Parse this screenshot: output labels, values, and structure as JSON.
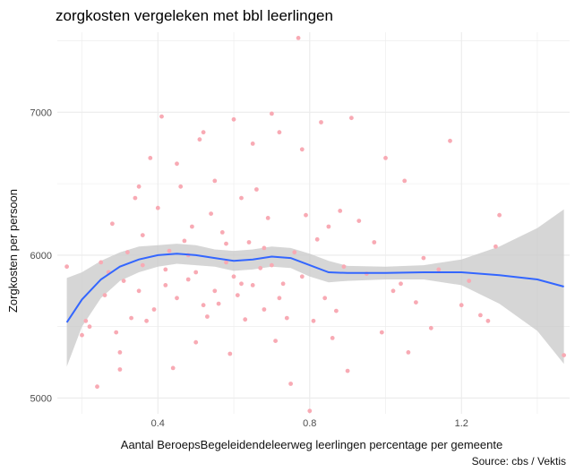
{
  "chart_data": {
    "type": "scatter",
    "title": "zorgkosten vergeleken met bbl leerlingen",
    "xlabel": "Aantal BeroepsBegeleidendeleerweg leerlingen percentage per gemeente",
    "ylabel": "Zorgkosten per persoon",
    "caption": "Source: cbs / Vektis",
    "xlim": [
      0.135,
      1.485
    ],
    "ylim": [
      4890,
      7560
    ],
    "xticks": [
      0.4,
      0.8,
      1.2
    ],
    "yticks": [
      5000,
      6000,
      7000
    ],
    "grid": true,
    "colors": {
      "points": "#f8aab4",
      "smooth": "#3366ff",
      "band": "#c8c8c8",
      "grid": "#ebebeb"
    },
    "smooth": {
      "method": "loess",
      "x": [
        0.16,
        0.2,
        0.25,
        0.3,
        0.35,
        0.4,
        0.45,
        0.5,
        0.55,
        0.6,
        0.65,
        0.7,
        0.75,
        0.8,
        0.85,
        0.9,
        1.0,
        1.1,
        1.2,
        1.3,
        1.4,
        1.47
      ],
      "y": [
        5530,
        5690,
        5830,
        5920,
        5970,
        6000,
        6010,
        6000,
        5980,
        5960,
        5970,
        5990,
        5980,
        5930,
        5880,
        5875,
        5875,
        5880,
        5880,
        5860,
        5830,
        5780
      ],
      "upper": [
        5840,
        5880,
        5960,
        6020,
        6060,
        6070,
        6080,
        6070,
        6040,
        6030,
        6040,
        6060,
        6050,
        6010,
        5960,
        5925,
        5920,
        5930,
        5970,
        6060,
        6190,
        6320
      ],
      "lower": [
        5220,
        5500,
        5700,
        5820,
        5880,
        5920,
        5940,
        5930,
        5920,
        5890,
        5900,
        5920,
        5910,
        5850,
        5810,
        5820,
        5830,
        5830,
        5790,
        5660,
        5470,
        5240
      ]
    },
    "points": [
      [
        0.16,
        5920
      ],
      [
        0.2,
        5440
      ],
      [
        0.21,
        5540
      ],
      [
        0.22,
        5500
      ],
      [
        0.24,
        5080
      ],
      [
        0.25,
        5950
      ],
      [
        0.26,
        5720
      ],
      [
        0.27,
        5880
      ],
      [
        0.28,
        6220
      ],
      [
        0.29,
        5460
      ],
      [
        0.3,
        5200
      ],
      [
        0.3,
        5320
      ],
      [
        0.31,
        5820
      ],
      [
        0.32,
        6020
      ],
      [
        0.33,
        5560
      ],
      [
        0.34,
        6400
      ],
      [
        0.35,
        6480
      ],
      [
        0.36,
        5930
      ],
      [
        0.36,
        6140
      ],
      [
        0.37,
        5540
      ],
      [
        0.38,
        6680
      ],
      [
        0.39,
        5620
      ],
      [
        0.4,
        6330
      ],
      [
        0.41,
        6970
      ],
      [
        0.42,
        5790
      ],
      [
        0.43,
        6030
      ],
      [
        0.44,
        5210
      ],
      [
        0.45,
        6640
      ],
      [
        0.46,
        6480
      ],
      [
        0.47,
        6100
      ],
      [
        0.48,
        5830
      ],
      [
        0.49,
        6200
      ],
      [
        0.5,
        5390
      ],
      [
        0.51,
        6810
      ],
      [
        0.52,
        6860
      ],
      [
        0.53,
        5570
      ],
      [
        0.54,
        6290
      ],
      [
        0.55,
        6520
      ],
      [
        0.56,
        5660
      ],
      [
        0.57,
        6160
      ],
      [
        0.58,
        6080
      ],
      [
        0.59,
        5310
      ],
      [
        0.6,
        6950
      ],
      [
        0.61,
        5720
      ],
      [
        0.62,
        6400
      ],
      [
        0.63,
        5550
      ],
      [
        0.64,
        6090
      ],
      [
        0.65,
        6780
      ],
      [
        0.66,
        6460
      ],
      [
        0.67,
        5910
      ],
      [
        0.68,
        5620
      ],
      [
        0.69,
        6260
      ],
      [
        0.7,
        6990
      ],
      [
        0.71,
        5400
      ],
      [
        0.72,
        6860
      ],
      [
        0.73,
        5800
      ],
      [
        0.74,
        5560
      ],
      [
        0.75,
        5100
      ],
      [
        0.76,
        6020
      ],
      [
        0.77,
        7520
      ],
      [
        0.78,
        6740
      ],
      [
        0.79,
        6280
      ],
      [
        0.8,
        4910
      ],
      [
        0.81,
        5540
      ],
      [
        0.82,
        6110
      ],
      [
        0.83,
        6930
      ],
      [
        0.84,
        5700
      ],
      [
        0.85,
        6200
      ],
      [
        0.86,
        5420
      ],
      [
        0.87,
        5610
      ],
      [
        0.88,
        6310
      ],
      [
        0.89,
        5920
      ],
      [
        0.9,
        5190
      ],
      [
        0.91,
        6960
      ],
      [
        0.93,
        6240
      ],
      [
        0.95,
        5870
      ],
      [
        0.97,
        6090
      ],
      [
        0.99,
        5460
      ],
      [
        1.0,
        6680
      ],
      [
        1.02,
        5750
      ],
      [
        1.04,
        5800
      ],
      [
        1.05,
        6520
      ],
      [
        1.06,
        5320
      ],
      [
        1.08,
        5670
      ],
      [
        1.1,
        5980
      ],
      [
        1.12,
        5490
      ],
      [
        1.14,
        5900
      ],
      [
        1.17,
        6800
      ],
      [
        1.2,
        5650
      ],
      [
        1.22,
        5820
      ],
      [
        1.25,
        5580
      ],
      [
        1.27,
        5540
      ],
      [
        1.29,
        6060
      ],
      [
        1.3,
        6280
      ],
      [
        1.47,
        5300
      ],
      [
        0.45,
        5700
      ],
      [
        0.5,
        5880
      ],
      [
        0.55,
        5750
      ],
      [
        0.6,
        5850
      ],
      [
        0.65,
        5790
      ],
      [
        0.7,
        5930
      ],
      [
        0.48,
        6000
      ],
      [
        0.58,
        5950
      ],
      [
        0.68,
        6050
      ],
      [
        0.52,
        5650
      ],
      [
        0.62,
        5800
      ],
      [
        0.72,
        5700
      ],
      [
        0.42,
        5900
      ],
      [
        0.78,
        5850
      ],
      [
        0.35,
        5750
      ]
    ]
  }
}
